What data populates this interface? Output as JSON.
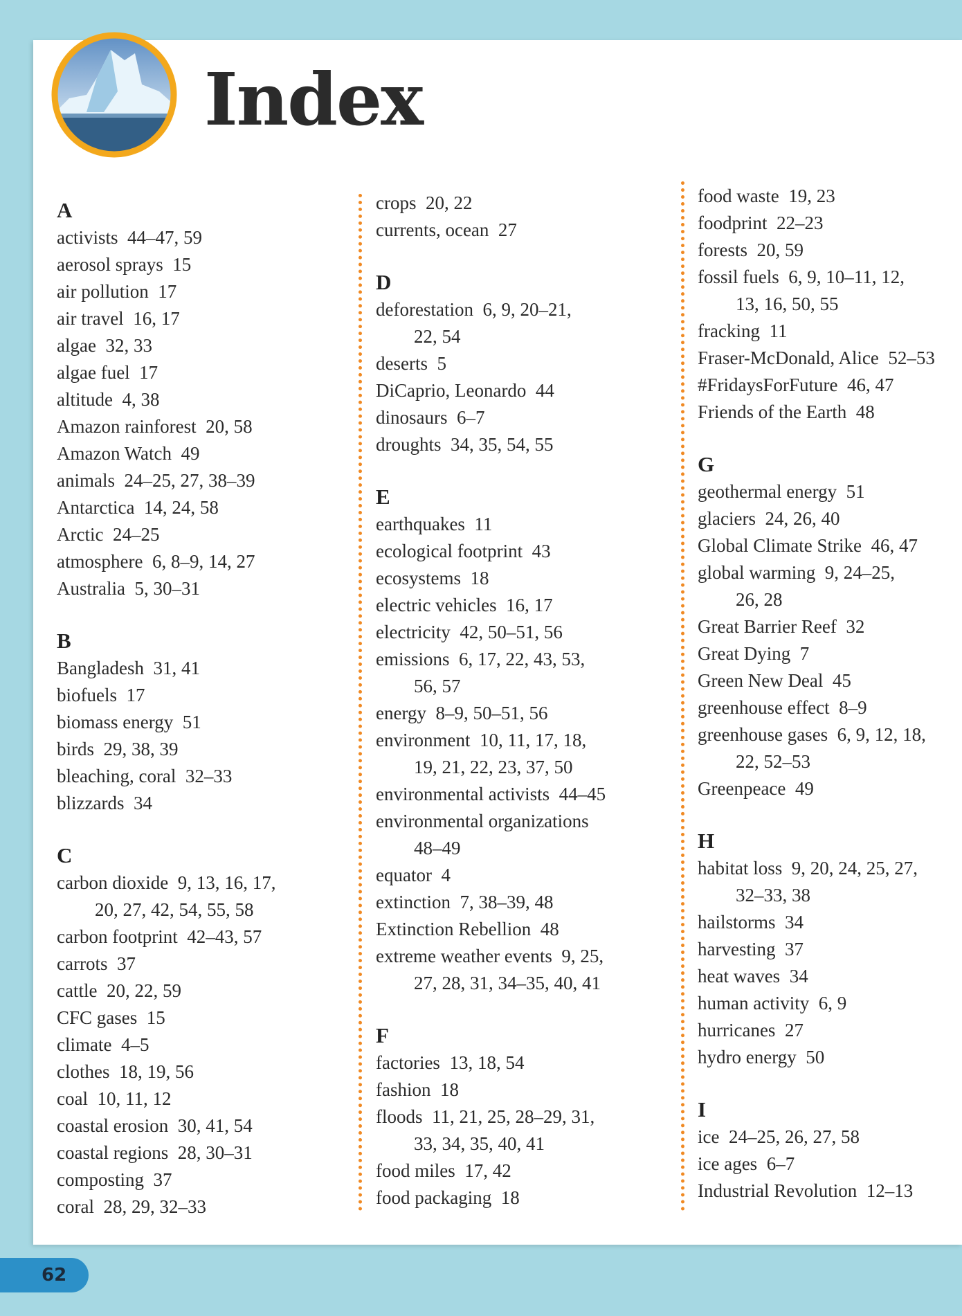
{
  "header": {
    "title": "Index"
  },
  "page_number": "62",
  "columns": [
    {
      "sections": [
        {
          "letter": "A",
          "entries": [
            [
              "activists  44–47, 59"
            ],
            [
              "aerosol sprays  15"
            ],
            [
              "air pollution  17"
            ],
            [
              "air travel  16, 17"
            ],
            [
              "algae  32, 33"
            ],
            [
              "algae fuel  17"
            ],
            [
              "altitude  4, 38"
            ],
            [
              "Amazon rainforest  20, 58"
            ],
            [
              "Amazon Watch  49"
            ],
            [
              "animals  24–25, 27, 38–39"
            ],
            [
              "Antarctica  14, 24, 58"
            ],
            [
              "Arctic  24–25"
            ],
            [
              "atmosphere  6, 8–9, 14, 27"
            ],
            [
              "Australia  5, 30–31"
            ]
          ]
        },
        {
          "letter": "B",
          "entries": [
            [
              "Bangladesh  31, 41"
            ],
            [
              "biofuels  17"
            ],
            [
              "biomass energy  51"
            ],
            [
              "birds  29, 38, 39"
            ],
            [
              "bleaching, coral  32–33"
            ],
            [
              "blizzards  34"
            ]
          ]
        },
        {
          "letter": "C",
          "entries": [
            [
              "carbon dioxide  9, 13, 16, 17,",
              "20, 27, 42, 54, 55, 58"
            ],
            [
              "carbon footprint  42–43, 57"
            ],
            [
              "carrots  37"
            ],
            [
              "cattle  20, 22, 59"
            ],
            [
              "CFC gases  15"
            ],
            [
              "climate  4–5"
            ],
            [
              "clothes  18, 19, 56"
            ],
            [
              "coal  10, 11, 12"
            ],
            [
              "coastal erosion  30, 41, 54"
            ],
            [
              "coastal regions  28, 30–31"
            ],
            [
              "composting  37"
            ],
            [
              "coral  28, 29, 32–33"
            ]
          ]
        }
      ]
    },
    {
      "sections": [
        {
          "entries": [
            [
              "crops  20, 22"
            ],
            [
              "currents, ocean  27"
            ]
          ]
        },
        {
          "letter": "D",
          "entries": [
            [
              "deforestation  6, 9, 20–21,",
              "22, 54"
            ],
            [
              "deserts  5"
            ],
            [
              "DiCaprio, Leonardo  44"
            ],
            [
              "dinosaurs  6–7"
            ],
            [
              "droughts  34, 35, 54, 55"
            ]
          ]
        },
        {
          "letter": "E",
          "entries": [
            [
              "earthquakes  11"
            ],
            [
              "ecological footprint  43"
            ],
            [
              "ecosystems  18"
            ],
            [
              "electric vehicles  16, 17"
            ],
            [
              "electricity  42, 50–51, 56"
            ],
            [
              "emissions  6, 17, 22, 43, 53,",
              "56, 57"
            ],
            [
              "energy  8–9, 50–51, 56"
            ],
            [
              "environment  10, 11, 17, 18,",
              "19, 21, 22, 23, 37, 50"
            ],
            [
              "environmental activists  44–45"
            ],
            [
              "environmental organizations",
              "48–49"
            ],
            [
              "equator  4"
            ],
            [
              "extinction  7, 38–39, 48"
            ],
            [
              "Extinction Rebellion  48"
            ],
            [
              "extreme weather events  9, 25,",
              "27, 28, 31, 34–35, 40, 41"
            ]
          ]
        },
        {
          "letter": "F",
          "entries": [
            [
              "factories  13, 18, 54"
            ],
            [
              "fashion  18"
            ],
            [
              "floods  11, 21, 25, 28–29, 31,",
              "33, 34, 35, 40, 41"
            ],
            [
              "food miles  17, 42"
            ],
            [
              "food packaging  18"
            ]
          ]
        }
      ]
    },
    {
      "sections": [
        {
          "entries": [
            [
              "food waste  19, 23"
            ],
            [
              "foodprint  22–23"
            ],
            [
              "forests  20, 59"
            ],
            [
              "fossil fuels  6, 9, 10–11, 12,",
              "13, 16, 50, 55"
            ],
            [
              "fracking  11"
            ],
            [
              "Fraser-McDonald, Alice  52–53"
            ],
            [
              "#FridaysForFuture  46, 47"
            ],
            [
              "Friends of the Earth  48"
            ]
          ]
        },
        {
          "letter": "G",
          "entries": [
            [
              "geothermal energy  51"
            ],
            [
              "glaciers  24, 26, 40"
            ],
            [
              "Global Climate Strike  46, 47"
            ],
            [
              "global warming  9, 24–25,",
              "26, 28"
            ],
            [
              "Great Barrier Reef  32"
            ],
            [
              "Great Dying  7"
            ],
            [
              "Green New Deal  45"
            ],
            [
              "greenhouse effect  8–9"
            ],
            [
              "greenhouse gases  6, 9, 12, 18,",
              "22, 52–53"
            ],
            [
              "Greenpeace  49"
            ]
          ]
        },
        {
          "letter": "H",
          "entries": [
            [
              "habitat loss  9, 20, 24, 25, 27,",
              "32–33, 38"
            ],
            [
              "hailstorms  34"
            ],
            [
              "harvesting  37"
            ],
            [
              "heat waves  34"
            ],
            [
              "human activity  6, 9"
            ],
            [
              "hurricanes  27"
            ],
            [
              "hydro energy  50"
            ]
          ]
        },
        {
          "letter": "I",
          "entries": [
            [
              "ice  24–25, 26, 27, 58"
            ],
            [
              "ice ages  6–7"
            ],
            [
              "Industrial Revolution  12–13"
            ]
          ]
        }
      ]
    }
  ]
}
